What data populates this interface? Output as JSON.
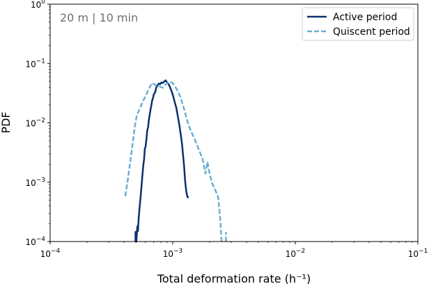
{
  "chart_data": {
    "type": "line",
    "annotation": "20 m | 10 min",
    "xlabel": "Total deformation rate (h⁻¹)",
    "ylabel": "PDF",
    "xscale": "log",
    "yscale": "log",
    "xlim": [
      0.0001,
      0.1
    ],
    "ylim": [
      0.0001,
      1
    ],
    "grid": false,
    "legend_position": "top-right",
    "x_ticks": [
      {
        "value": 0.0001,
        "base": "10",
        "exp": "−4"
      },
      {
        "value": 0.001,
        "base": "10",
        "exp": "−3"
      },
      {
        "value": 0.01,
        "base": "10",
        "exp": "−2"
      },
      {
        "value": 0.1,
        "base": "10",
        "exp": "−1"
      }
    ],
    "y_ticks": [
      {
        "value": 0.0001,
        "base": "10",
        "exp": "−4"
      },
      {
        "value": 0.001,
        "base": "10",
        "exp": "−3"
      },
      {
        "value": 0.01,
        "base": "10",
        "exp": "−2"
      },
      {
        "value": 0.1,
        "base": "10",
        "exp": "−1"
      },
      {
        "value": 1,
        "base": "10",
        "exp": "0"
      }
    ],
    "series": [
      {
        "name": "Active period",
        "color": "#08306b",
        "dash": "solid",
        "points": [
          [
            0.000497,
            0.0001
          ],
          [
            0.000497,
            0.000145
          ],
          [
            0.000505,
            0.0001
          ],
          [
            0.00051,
            0.00014
          ],
          [
            0.000515,
            0.00018
          ],
          [
            0.00052,
            0.00015
          ],
          [
            0.000528,
            0.00025
          ],
          [
            0.000535,
            0.00035
          ],
          [
            0.000545,
            0.00052
          ],
          [
            0.000555,
            0.0008
          ],
          [
            0.000565,
            0.00125
          ],
          [
            0.000575,
            0.0019
          ],
          [
            0.000585,
            0.0025
          ],
          [
            0.000592,
            0.0037
          ],
          [
            0.0006,
            0.0039
          ],
          [
            0.00061,
            0.0052
          ],
          [
            0.00062,
            0.0075
          ],
          [
            0.00063,
            0.0085
          ],
          [
            0.00064,
            0.0115
          ],
          [
            0.00065,
            0.014
          ],
          [
            0.00066,
            0.017
          ],
          [
            0.00067,
            0.02
          ],
          [
            0.00068,
            0.024
          ],
          [
            0.00069,
            0.026
          ],
          [
            0.0007,
            0.03
          ],
          [
            0.00072,
            0.033
          ],
          [
            0.000735,
            0.04
          ],
          [
            0.00075,
            0.042
          ],
          [
            0.00077,
            0.046
          ],
          [
            0.00079,
            0.045
          ],
          [
            0.00081,
            0.048
          ],
          [
            0.00083,
            0.047
          ],
          [
            0.000855,
            0.05
          ],
          [
            0.000875,
            0.052
          ],
          [
            0.0009,
            0.048
          ],
          [
            0.000925,
            0.045
          ],
          [
            0.00095,
            0.04
          ],
          [
            0.00098,
            0.034
          ],
          [
            0.00101,
            0.028
          ],
          [
            0.00104,
            0.022
          ],
          [
            0.00107,
            0.018
          ],
          [
            0.0011,
            0.013
          ],
          [
            0.00113,
            0.0095
          ],
          [
            0.00116,
            0.0066
          ],
          [
            0.00119,
            0.0045
          ],
          [
            0.00121,
            0.0031
          ],
          [
            0.00124,
            0.0018
          ],
          [
            0.00126,
            0.0011
          ],
          [
            0.00129,
            0.0007
          ],
          [
            0.00132,
            0.00056
          ],
          [
            0.00135,
            0.00055
          ]
        ]
      },
      {
        "name": "Quiscent period",
        "color": "#6baed6",
        "dash": "dashed",
        "points": [
          [
            0.00041,
            0.00058
          ],
          [
            0.00043,
            0.0011
          ],
          [
            0.00045,
            0.0022
          ],
          [
            0.00047,
            0.0043
          ],
          [
            0.00049,
            0.0085
          ],
          [
            0.00051,
            0.0135
          ],
          [
            0.00054,
            0.0175
          ],
          [
            0.00057,
            0.023
          ],
          [
            0.0006,
            0.028
          ],
          [
            0.00064,
            0.038
          ],
          [
            0.00068,
            0.047
          ],
          [
            0.00073,
            0.043
          ],
          [
            0.00078,
            0.041
          ],
          [
            0.00083,
            0.039
          ],
          [
            0.00088,
            0.045
          ],
          [
            0.00094,
            0.049
          ],
          [
            0.001,
            0.047
          ],
          [
            0.00107,
            0.038
          ],
          [
            0.00115,
            0.028
          ],
          [
            0.00123,
            0.018
          ],
          [
            0.00131,
            0.011
          ],
          [
            0.0014,
            0.0075
          ],
          [
            0.0015,
            0.0055
          ],
          [
            0.00162,
            0.0037
          ],
          [
            0.00175,
            0.0025
          ],
          [
            0.00185,
            0.0014
          ],
          [
            0.00192,
            0.0022
          ],
          [
            0.002,
            0.0014
          ],
          [
            0.0021,
            0.00095
          ],
          [
            0.00222,
            0.00075
          ],
          [
            0.00235,
            0.00055
          ],
          [
            0.00245,
            0.00022
          ],
          [
            0.0025,
            0.0001
          ]
        ]
      },
      {
        "name": "",
        "color": "#6baed6",
        "dash": "dashed",
        "points": [
          [
            0.00272,
            0.0001
          ],
          [
            0.00272,
            0.000145
          ]
        ]
      }
    ]
  }
}
